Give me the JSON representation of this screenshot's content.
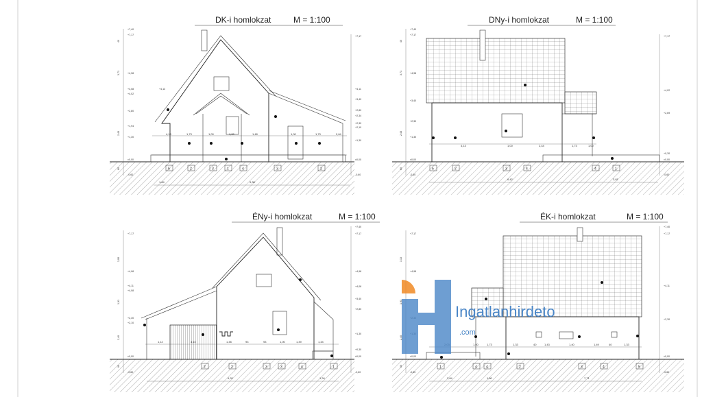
{
  "drawings": {
    "se": {
      "title": "DK-i homlokzat",
      "scale": "M = 1:100",
      "levels_left": [
        "+7,40",
        "+7,17",
        "+4,98",
        "+4,08",
        "+4,02",
        "+2,80",
        "+1,94",
        "+1,30",
        "±0,00",
        "-0,60"
      ],
      "levels_right": [
        "+7,17",
        "+4,11",
        "+3,40",
        "+2,80",
        "+2,34",
        "+2,30",
        "+2,10",
        "+1,30",
        "±0,00",
        "-0,60"
      ],
      "level_mid": "+4,13",
      "dims_top": [
        "4,13",
        "1,73",
        "1,00",
        "1,00",
        "1,48",
        "1,00",
        "1,73",
        "2,64"
      ],
      "dims_bottom": [
        "1,84",
        "9,38"
      ],
      "axes": [
        "5",
        "2",
        "3",
        "1",
        "4",
        "3",
        "2"
      ],
      "side_dims": [
        "40",
        "3,71",
        "2,48",
        "60"
      ]
    },
    "sw": {
      "title": "DNy-i homlokzat",
      "scale": "M = 1:100",
      "levels_left": [
        "+7,40",
        "+7,17",
        "+4,98",
        "+3,40",
        "+2,30",
        "+1,30",
        "±0,00",
        "-0,60"
      ],
      "levels_right": [
        "+7,17",
        "+4,02",
        "+2,69",
        "+0,30",
        "±0,00",
        "-0,60"
      ],
      "dims_top": [
        "4,13",
        "1,00",
        "2,44",
        "1,73",
        "1,00"
      ],
      "dims_bottom": [
        "6,42",
        "3,81"
      ],
      "axes": [
        "5",
        "2",
        "3",
        "4",
        "4",
        "1"
      ],
      "side_dims": [
        "40",
        "3,71",
        "2,48",
        "60"
      ]
    },
    "nw": {
      "title": "ÉNy-i homlokzat",
      "scale": "M = 1:100",
      "levels_left": [
        "+7,17",
        "+4,98",
        "+4,11",
        "+4,08",
        "+2,30",
        "+2,10",
        "±0,00",
        "-0,60"
      ],
      "levels_right": [
        "+7,40",
        "+7,17",
        "+4,98",
        "+4,08",
        "+3,40",
        "+2,80",
        "+1,30",
        "+0,30",
        "±0,00",
        "-0,60"
      ],
      "dims_top": [
        "1,12",
        "3,15",
        "1,38",
        "93",
        "93",
        "1,00",
        "1,39",
        "1,34"
      ],
      "dims_bottom": [
        "9,32",
        "1,34"
      ],
      "axes": [
        "2",
        "2",
        "3",
        "3",
        "4",
        "1"
      ],
      "side_dims": [
        "3,08",
        "1,91",
        "2,40",
        "60"
      ]
    },
    "ne": {
      "title": "ÉK-i homlokzat",
      "scale": "M = 1:100",
      "levels_left": [
        "+7,17",
        "+4,98",
        "+2,30",
        "+1,30",
        "±0,00",
        "-0,60"
      ],
      "levels_right": [
        "+7,40",
        "+7,17",
        "+4,11",
        "+2,30",
        "±0,00",
        "-0,60"
      ],
      "dims_top": [
        "2,03",
        "1,00",
        "1,73",
        "1,33",
        "40",
        "1,43",
        "1,40",
        "1,49",
        "40",
        "1,33"
      ],
      "dims_bottom": [
        "2,84",
        "1,80",
        "7,71"
      ],
      "axes": [
        "1",
        "4",
        "4",
        "2",
        "3",
        "4",
        "5"
      ],
      "side_dims": [
        "3,13",
        "1,91",
        "2,40",
        "60"
      ]
    }
  },
  "watermark": {
    "brand": "Ingatlanhirdeto",
    "suffix": ".com",
    "colors": {
      "blue": "#4a86c7",
      "orange": "#f08a24"
    }
  }
}
